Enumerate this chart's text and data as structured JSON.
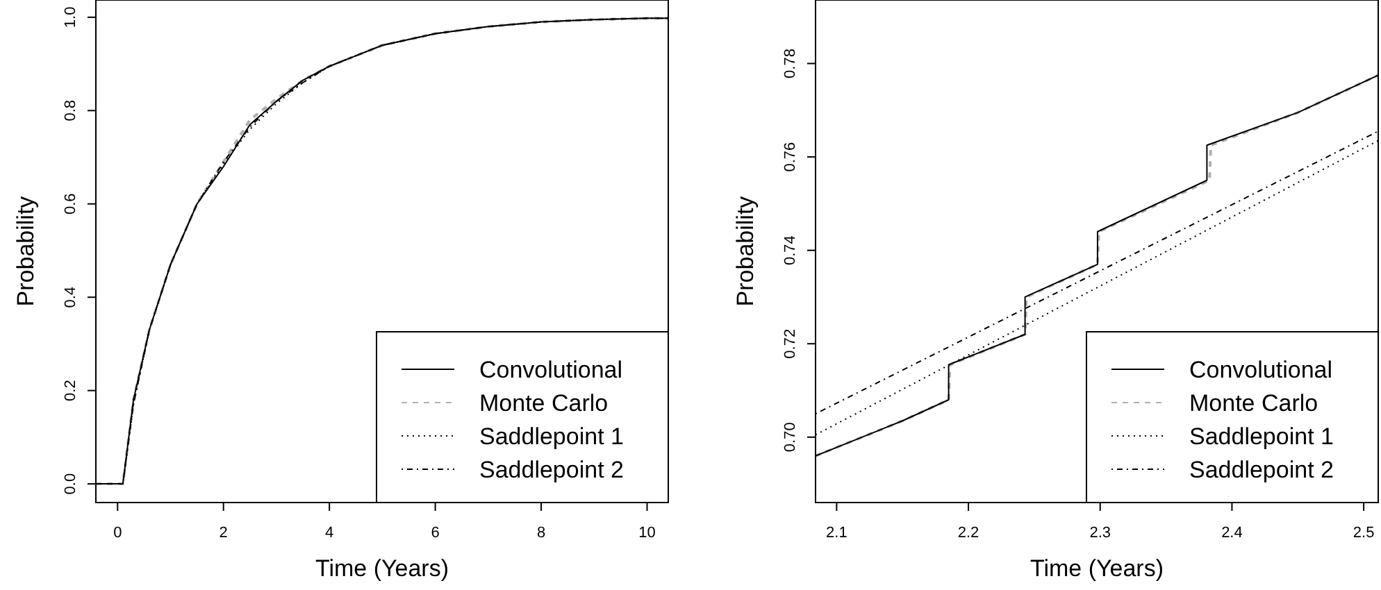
{
  "chart_data": [
    {
      "type": "line",
      "xlabel": "Time (Years)",
      "ylabel": "Probability",
      "xlim": [
        -0.41,
        10.4
      ],
      "ylim": [
        -0.04,
        1.037
      ],
      "xticks": [
        0,
        2,
        4,
        6,
        8,
        10
      ],
      "yticks": [
        {
          "value": 0,
          "label": "0.0"
        },
        0.2,
        0.4,
        0.6,
        0.8,
        {
          "value": 1,
          "label": "1.0"
        }
      ],
      "legend": "bottom right",
      "series": [
        {
          "name": "Monte Carlo",
          "color": "#b0b0b0",
          "line_style": "dashed",
          "x": [
            -0.41,
            0.1,
            0.3,
            0.6,
            1,
            1.5,
            2,
            2.5,
            3,
            3.5,
            4,
            5,
            6,
            7,
            8,
            9,
            10,
            10.4
          ],
          "values": [
            0,
            0,
            0.18,
            0.33,
            0.47,
            0.6,
            0.69,
            0.78,
            0.825,
            0.865,
            0.895,
            0.94,
            0.965,
            0.98,
            0.99,
            0.995,
            0.998,
            0.998
          ]
        },
        {
          "name": "Convolutional",
          "color": "#000000",
          "line_style": "solid",
          "x": [
            -0.41,
            0.1,
            0.3,
            0.6,
            1,
            1.5,
            2,
            2.5,
            3,
            3.5,
            4,
            5,
            6,
            7,
            8,
            9,
            10,
            10.4
          ],
          "values": [
            0,
            0,
            0.18,
            0.33,
            0.47,
            0.6,
            0.68,
            0.77,
            0.82,
            0.865,
            0.895,
            0.94,
            0.965,
            0.98,
            0.99,
            0.995,
            0.998,
            0.998
          ]
        },
        {
          "name": "Saddlepoint 1",
          "color": "#000000",
          "line_style": "dotted",
          "x": [
            -0.41,
            0.1,
            0.3,
            0.6,
            1,
            1.5,
            2,
            2.5,
            3,
            3.5,
            4,
            5,
            6,
            7,
            8,
            9,
            10,
            10.4
          ],
          "values": [
            0,
            0,
            0.17,
            0.33,
            0.47,
            0.6,
            0.685,
            0.76,
            0.815,
            0.86,
            0.895,
            0.94,
            0.965,
            0.98,
            0.99,
            0.995,
            0.998,
            0.998
          ]
        },
        {
          "name": "Saddlepoint 2",
          "color": "#000000",
          "line_style": "dotdash",
          "x": [
            -0.41,
            0.1,
            0.3,
            0.6,
            1,
            1.5,
            2,
            2.5,
            3,
            3.5,
            4,
            5,
            6,
            7,
            8,
            9,
            10,
            10.4
          ],
          "values": [
            0,
            0,
            0.17,
            0.33,
            0.47,
            0.6,
            0.69,
            0.765,
            0.82,
            0.86,
            0.895,
            0.94,
            0.965,
            0.98,
            0.99,
            0.995,
            0.998,
            0.998
          ]
        }
      ]
    },
    {
      "type": "line",
      "xlabel": "Time (Years)",
      "ylabel": "Probability",
      "xlim": [
        2.084,
        2.511
      ],
      "ylim": [
        0.686,
        0.7936
      ],
      "xticks": [
        2.1,
        2.2,
        2.3,
        2.4,
        2.5
      ],
      "yticks": [
        {
          "value": 0.7,
          "label": "0.70"
        },
        0.72,
        0.74,
        0.76,
        0.78
      ],
      "legend": "bottom right",
      "series": [
        {
          "name": "Monte Carlo",
          "color": "#b0b0b0",
          "line_style": "dashed",
          "x": [
            2.084,
            2.15,
            2.185,
            2.186,
            2.243,
            2.244,
            2.298,
            2.299,
            2.383,
            2.384,
            2.45,
            2.511
          ],
          "values": [
            0.696,
            0.7035,
            0.708,
            0.7155,
            0.722,
            0.73,
            0.737,
            0.744,
            0.755,
            0.7625,
            0.7695,
            0.7775
          ]
        },
        {
          "name": "Convolutional",
          "color": "#000000",
          "line_style": "solid",
          "x": [
            2.084,
            2.15,
            2.185,
            2.185,
            2.243,
            2.243,
            2.298,
            2.298,
            2.381,
            2.381,
            2.45,
            2.511
          ],
          "values": [
            0.696,
            0.7035,
            0.708,
            0.7155,
            0.722,
            0.73,
            0.737,
            0.744,
            0.755,
            0.7625,
            0.7695,
            0.7775
          ]
        },
        {
          "name": "Saddlepoint 1",
          "color": "#000000",
          "line_style": "dotted",
          "x": [
            2.084,
            2.511
          ],
          "values": [
            0.7005,
            0.7635
          ]
        },
        {
          "name": "Saddlepoint 2",
          "color": "#000000",
          "line_style": "dotdash",
          "x": [
            2.084,
            2.511
          ],
          "values": [
            0.705,
            0.7655
          ]
        }
      ]
    }
  ]
}
